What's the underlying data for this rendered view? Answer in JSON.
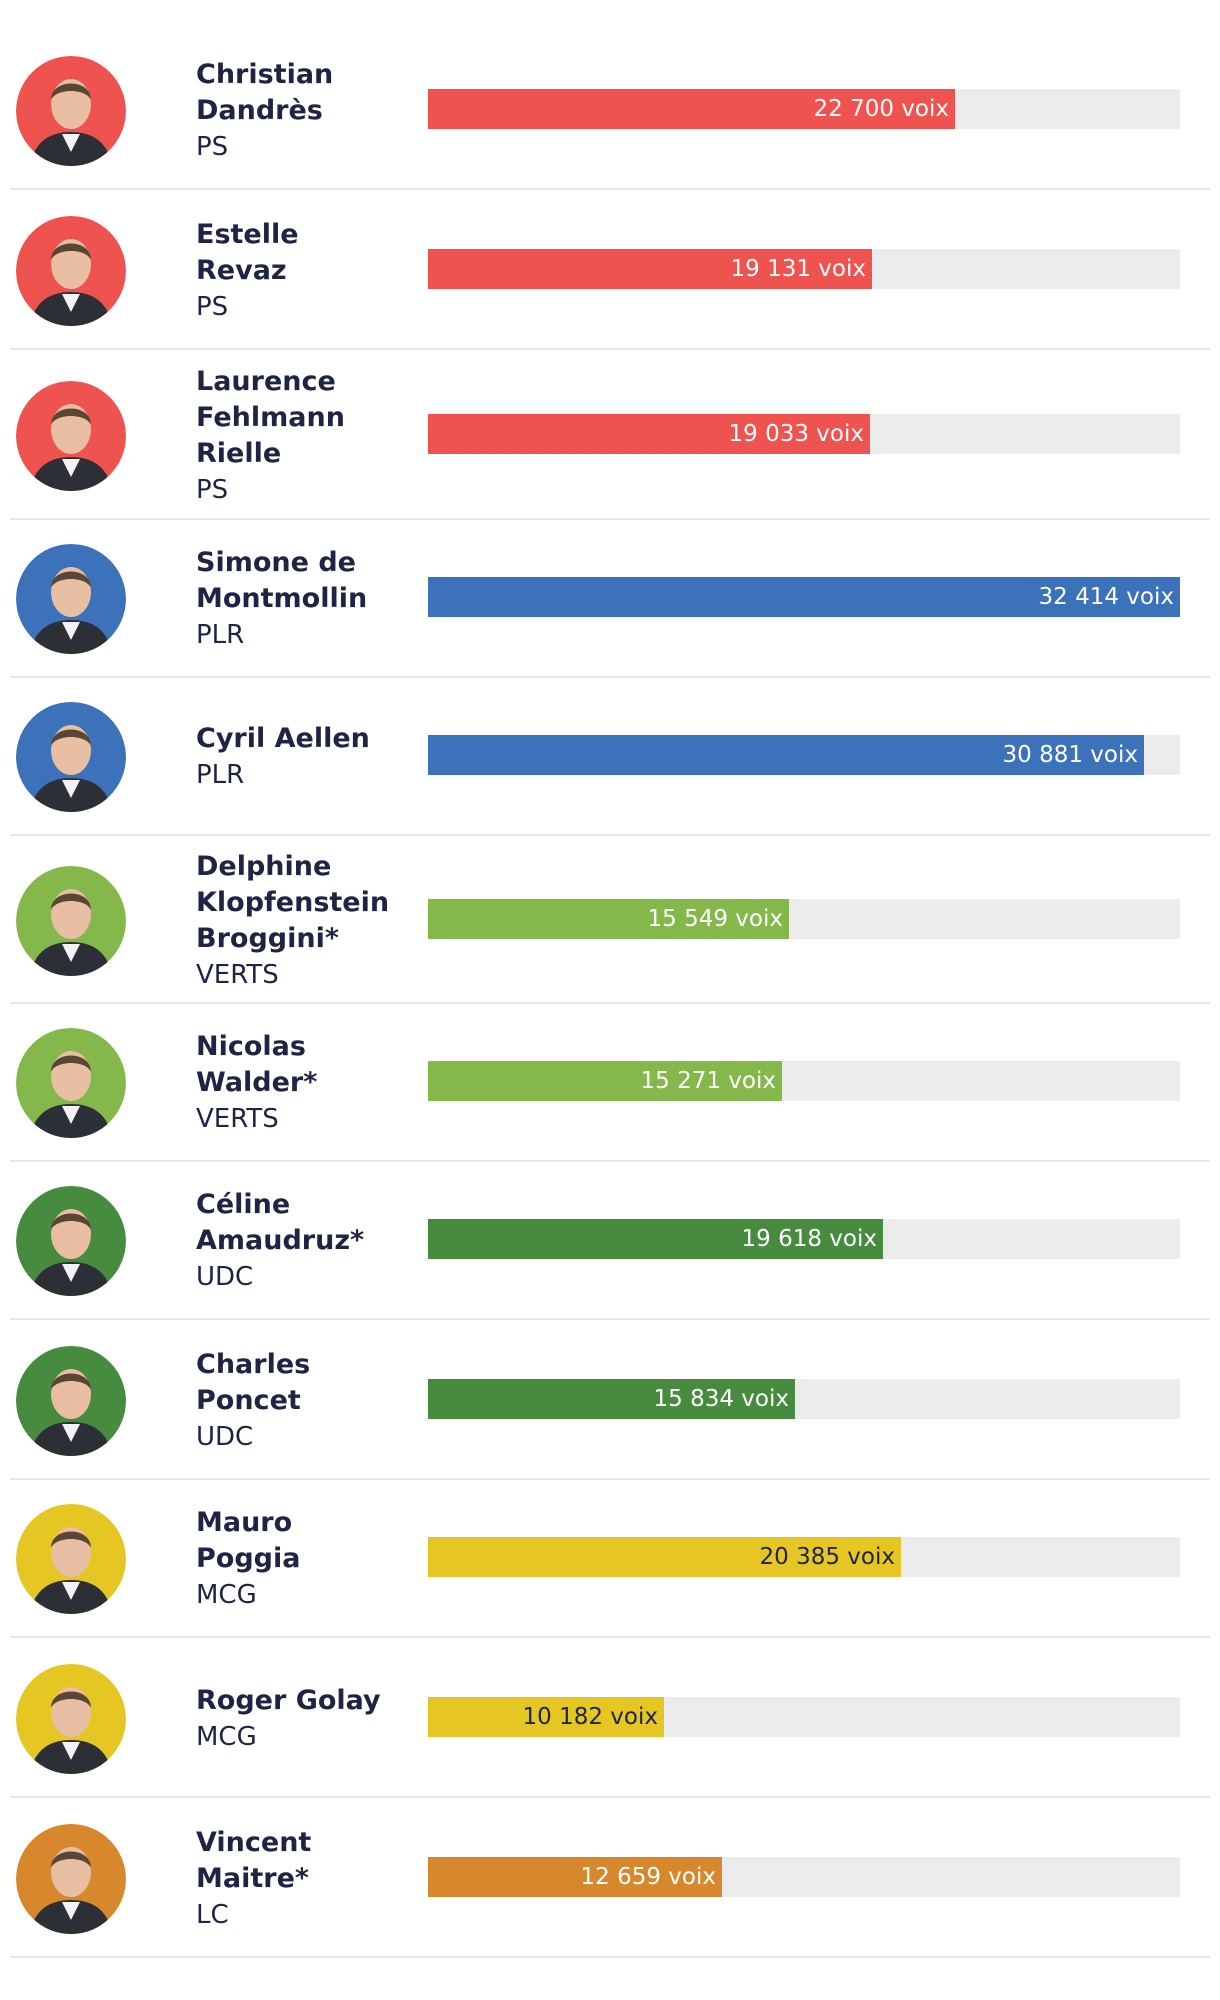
{
  "colors": {
    "PS": "#ef5350",
    "PLR": "#3b72b9",
    "VERTS": "#84b84a",
    "UDC": "#478b3e",
    "MCG": "#e5c623",
    "LC": "#d7882c",
    "track": "#ececec",
    "text": "#1f2445"
  },
  "chart_data": {
    "type": "bar",
    "orientation": "horizontal",
    "unit": "voix",
    "xlim": [
      0,
      32414
    ],
    "title": "",
    "candidates": [
      {
        "name": "Christian Dandrès",
        "name_lines": [
          "Christian",
          "Dandrès"
        ],
        "party": "PS",
        "votes": 22700,
        "label": "22 700 voix"
      },
      {
        "name": "Estelle Revaz",
        "name_lines": [
          "Estelle",
          "Revaz"
        ],
        "party": "PS",
        "votes": 19131,
        "label": "19 131 voix"
      },
      {
        "name": "Laurence Fehlmann Rielle",
        "name_lines": [
          "Laurence",
          "Fehlmann",
          "Rielle"
        ],
        "party": "PS",
        "votes": 19033,
        "label": "19 033 voix"
      },
      {
        "name": "Simone de Montmollin",
        "name_lines": [
          "Simone de",
          "Montmollin"
        ],
        "party": "PLR",
        "votes": 32414,
        "label": "32 414 voix"
      },
      {
        "name": "Cyril Aellen",
        "name_lines": [
          "Cyril Aellen"
        ],
        "party": "PLR",
        "votes": 30881,
        "label": "30 881 voix"
      },
      {
        "name": "Delphine Klopfenstein Broggini*",
        "name_lines": [
          "Delphine",
          "Klopfenstein",
          "Broggini*"
        ],
        "party": "VERTS",
        "votes": 15549,
        "label": "15 549 voix"
      },
      {
        "name": "Nicolas Walder*",
        "name_lines": [
          "Nicolas",
          "Walder*"
        ],
        "party": "VERTS",
        "votes": 15271,
        "label": "15 271 voix"
      },
      {
        "name": "Céline Amaudruz*",
        "name_lines": [
          "Céline",
          "Amaudruz*"
        ],
        "party": "UDC",
        "votes": 19618,
        "label": "19 618 voix"
      },
      {
        "name": "Charles Poncet",
        "name_lines": [
          "Charles",
          "Poncet"
        ],
        "party": "UDC",
        "votes": 15834,
        "label": "15 834 voix"
      },
      {
        "name": "Mauro Poggia",
        "name_lines": [
          "Mauro",
          "Poggia"
        ],
        "party": "MCG",
        "votes": 20385,
        "label": "20 385 voix"
      },
      {
        "name": "Roger Golay",
        "name_lines": [
          "Roger Golay"
        ],
        "party": "MCG",
        "votes": 10182,
        "label": "10 182 voix"
      },
      {
        "name": "Vincent Maitre*",
        "name_lines": [
          "Vincent",
          "Maitre*"
        ],
        "party": "LC",
        "votes": 12659,
        "label": "12 659 voix"
      }
    ]
  }
}
